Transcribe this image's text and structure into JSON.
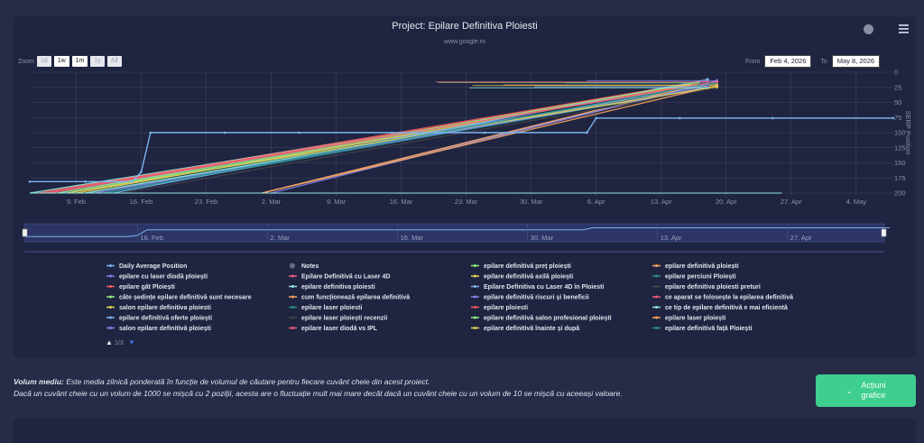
{
  "header": {
    "title": "Project: Epilare Definitiva Ploiesti",
    "subtitle": "www.google.ro"
  },
  "toolbar": {
    "zoom_label": "Zoom",
    "zoom_buttons": [
      "1d",
      "1w",
      "1m",
      "1y",
      "All"
    ],
    "from_label": "From",
    "from_value": "Feb 4, 2026",
    "to_label": "To",
    "to_value": "May 8, 2026"
  },
  "colors": {
    "background": "#262b48",
    "panel": "#1f2440",
    "accent_button": "#3ecf8e",
    "daily_average": "#7cb5ec"
  },
  "chart_data": {
    "type": "line",
    "title": "Project: Epilare Definitiva Ploiesti",
    "subtitle": "www.google.ro",
    "ylabel": "SERP Position",
    "y_reversed": true,
    "ylim": [
      0,
      200
    ],
    "y_ticks": [
      0,
      25,
      50,
      75,
      100,
      125,
      150,
      175,
      200
    ],
    "x_ticks": [
      "9. Feb",
      "16. Feb",
      "23. Feb",
      "2. Mar",
      "9. Mar",
      "16. Mar",
      "23. Mar",
      "30. Mar",
      "6. Apr",
      "13. Apr",
      "20. Apr",
      "27. Apr",
      "4. May"
    ],
    "navigator_ticks": [
      "16. Feb",
      "2. Mar",
      "16. Mar",
      "30. Mar",
      "13. Apr",
      "27. Apr"
    ],
    "grid": true,
    "legend_position": "bottom",
    "legend_pages": "1/3",
    "daily_average": {
      "name": "Daily Average Position",
      "points": [
        [
          "2026-02-04",
          181
        ],
        [
          "2026-02-10",
          181
        ],
        [
          "2026-02-15",
          181
        ],
        [
          "2026-02-16",
          165
        ],
        [
          "2026-02-17",
          100
        ],
        [
          "2026-02-25",
          100
        ],
        [
          "2026-03-05",
          100
        ],
        [
          "2026-03-15",
          100
        ],
        [
          "2026-03-25",
          100
        ],
        [
          "2026-04-05",
          100
        ],
        [
          "2026-04-06",
          76
        ],
        [
          "2026-04-15",
          76
        ],
        [
          "2026-04-25",
          76
        ],
        [
          "2026-05-08",
          76
        ]
      ]
    },
    "series": [
      {
        "name": "Notes",
        "color": "#666b80"
      },
      {
        "name": "epilare definitivă preț ploiești",
        "color": "#90ed7d",
        "start": [
          "2026-02-06",
          200
        ],
        "end": [
          "2026-04-17",
          18
        ]
      },
      {
        "name": "epilare definitivă ploiești",
        "color": "#f7a35c",
        "start": [
          "2026-03-01",
          200
        ],
        "end": [
          "2026-04-18",
          20
        ]
      },
      {
        "name": "epilare cu laser diodă ploiești",
        "color": "#8085e9",
        "start": [
          "2026-03-01",
          200
        ],
        "end": [
          "2026-04-19",
          14
        ]
      },
      {
        "name": "Epilare Definitivă cu Laser 4D",
        "color": "#f15c80",
        "start": [
          "2026-02-05",
          200
        ],
        "end": [
          "2026-04-19",
          17
        ]
      },
      {
        "name": "epilare definitivă axilă ploiești",
        "color": "#e4d354",
        "start": [
          "2026-02-10",
          200
        ],
        "end": [
          "2026-04-19",
          20
        ]
      },
      {
        "name": "epilare perciuni Ploiești",
        "color": "#2b908f",
        "start": [
          "2026-02-10",
          200
        ],
        "end": [
          "2026-04-19",
          18
        ]
      },
      {
        "name": "epilare gât Ploiești",
        "color": "#f45b5b",
        "start": [
          "2026-02-05",
          200
        ],
        "end": [
          "2026-04-17",
          16
        ]
      },
      {
        "name": "epilare definitiva ploiesti",
        "color": "#91e8e1",
        "start": [
          "2026-02-04",
          200
        ],
        "end": [
          "2026-04-17",
          22
        ]
      },
      {
        "name": "Epilare Definitiva cu Laser 4D în Ploiesti",
        "color": "#7cb5ec",
        "start": [
          "2026-02-07",
          200
        ],
        "end": [
          "2026-04-18",
          24
        ]
      },
      {
        "name": "epilare definitiva ploiesti preturi",
        "color": "#434348",
        "start": [
          "2026-02-11",
          200
        ],
        "end": [
          "2026-04-18",
          24
        ]
      },
      {
        "name": "câte ședințe epilare definitivă sunt necesare",
        "color": "#90ed7d",
        "start": [
          "2026-02-08",
          200
        ],
        "end": [
          "2026-04-16",
          21
        ]
      },
      {
        "name": "cum funcționează epilarea definitivă",
        "color": "#f7a35c",
        "start": [
          "2026-03-01",
          200
        ],
        "end": [
          "2026-04-17",
          21
        ]
      },
      {
        "name": "epilare definitivă riscuri și beneficii",
        "color": "#8085e9",
        "start": [
          "2026-03-02",
          200
        ],
        "end": [
          "2026-04-18",
          19
        ]
      },
      {
        "name": "ce aparat se folosește la epilarea definitivă",
        "color": "#f15c80",
        "start": [
          "2026-02-06",
          200
        ],
        "end": [
          "2026-04-18",
          15
        ]
      },
      {
        "name": "salon epilare definitiva ploiesti",
        "color": "#e4d354",
        "start": [
          "2026-02-09",
          200
        ],
        "end": [
          "2026-04-16",
          22
        ]
      },
      {
        "name": "epilare laser ploiesti",
        "color": "#2b908f",
        "start": [
          "2026-02-12",
          200
        ],
        "end": [
          "2026-04-19",
          23
        ]
      },
      {
        "name": "epilare ploiesti",
        "color": "#f45b5b",
        "start": [
          "2026-02-05",
          200
        ],
        "end": [
          "2026-04-17",
          20
        ]
      },
      {
        "name": "ce tip de epilare definitivă e mai eficientă",
        "color": "#91e8e1",
        "start": [
          "2026-02-10",
          200
        ],
        "end": [
          "2026-04-18",
          26
        ]
      },
      {
        "name": "epilare definitivă oferte ploiești",
        "color": "#7cb5ec",
        "start": [
          "2026-02-13",
          200
        ],
        "end": [
          "2026-04-18",
          12
        ]
      },
      {
        "name": "epilare laser ploiești recenzii",
        "color": "#434348",
        "start": [
          "2026-02-14",
          200
        ],
        "end": [
          "2026-04-19",
          26
        ]
      },
      {
        "name": "epilare definitivă salon profesional ploiești",
        "color": "#90ed7d",
        "start": [
          "2026-02-07",
          200
        ],
        "end": [
          "2026-04-17",
          17
        ]
      },
      {
        "name": "epilare laser ploiești",
        "color": "#f7a35c",
        "start": [
          "2026-03-01",
          200
        ],
        "end": [
          "2026-04-19",
          22
        ]
      },
      {
        "name": "salon epilare definitivă ploiești",
        "color": "#8085e9",
        "start": [
          "2026-02-11",
          200
        ],
        "end": [
          "2026-04-18",
          25
        ]
      },
      {
        "name": "epilare laser diodă vs IPL",
        "color": "#f15c80",
        "start": [
          "2026-02-06",
          200
        ],
        "end": [
          "2026-04-19",
          16
        ]
      },
      {
        "name": "epilare definitivă înainte și după",
        "color": "#e4d354",
        "start": [
          "2026-02-08",
          200
        ],
        "end": [
          "2026-04-19",
          24
        ]
      },
      {
        "name": "epilare definitivă față Ploiești",
        "color": "#2b908f",
        "start": [
          "2026-02-12",
          200
        ],
        "end": [
          "2026-04-17",
          22
        ]
      }
    ]
  },
  "legend": {
    "columns": [
      [
        {
          "label": "Daily Average Position",
          "color": "#7cb5ec",
          "bold": true
        },
        {
          "label": "epilare cu laser diodă ploiești",
          "color": "#8085e9"
        },
        {
          "label": "epilare gât Ploiești",
          "color": "#f45b5b"
        },
        {
          "label": "câte ședințe epilare definitivă sunt necesare",
          "color": "#90ed7d"
        },
        {
          "label": "salon epilare definitiva ploiesti",
          "color": "#e4d354"
        },
        {
          "label": "epilare definitivă oferte ploiești",
          "color": "#7cb5ec"
        },
        {
          "label": "salon epilare definitivă ploiești",
          "color": "#8085e9"
        }
      ],
      [
        {
          "label": "Notes",
          "color": "#666b80",
          "dot": true
        },
        {
          "label": "Epilare Definitivă cu Laser 4D",
          "color": "#f15c80"
        },
        {
          "label": "epilare definitiva ploiesti",
          "color": "#91e8e1"
        },
        {
          "label": "cum funcționează epilarea definitivă",
          "color": "#f7a35c"
        },
        {
          "label": "epilare laser ploiesti",
          "color": "#2b908f"
        },
        {
          "label": "epilare laser ploiești recenzii",
          "color": "#434348"
        },
        {
          "label": "epilare laser diodă vs IPL",
          "color": "#f15c80"
        }
      ],
      [
        {
          "label": "epilare definitivă preț ploiești",
          "color": "#90ed7d"
        },
        {
          "label": "epilare definitivă axilă ploiești",
          "color": "#e4d354"
        },
        {
          "label": "Epilare Definitiva cu Laser 4D în Ploiesti",
          "color": "#7cb5ec"
        },
        {
          "label": "epilare definitivă riscuri și beneficii",
          "color": "#8085e9"
        },
        {
          "label": "epilare ploiesti",
          "color": "#f45b5b"
        },
        {
          "label": "epilare definitivă salon profesional ploiești",
          "color": "#90ed7d"
        },
        {
          "label": "epilare definitivă înainte și după",
          "color": "#e4d354"
        }
      ],
      [
        {
          "label": "epilare definitivă ploiești",
          "color": "#f7a35c"
        },
        {
          "label": "epilare perciuni Ploiești",
          "color": "#2b908f"
        },
        {
          "label": "epilare definitiva ploiesti preturi",
          "color": "#434348"
        },
        {
          "label": "ce aparat se folosește la epilarea definitivă",
          "color": "#f15c80"
        },
        {
          "label": "ce tip de epilare definitivă e mai eficientă",
          "color": "#91e8e1"
        },
        {
          "label": "epilare laser ploiești",
          "color": "#f7a35c"
        },
        {
          "label": "epilare definitivă față Ploiești",
          "color": "#2b908f"
        }
      ]
    ],
    "pager": "1/3"
  },
  "footnote": {
    "term": "Volum mediu:",
    "line1": " Este media zilnică ponderată în funcție de volumul de căutare pentru fiecare cuvânt cheie din acest proiect.",
    "line2": "Dacă un cuvânt cheie cu un volum de 1000 se mișcă cu 2 poziții, acesta are o fluctuație mult mai mare decât dacă un cuvânt cheie cu un volum de 10 se mișcă cu aceeași valoare."
  },
  "actions": {
    "label_line1": "Acțiuni",
    "label_line2": "grafice",
    "chevron": "⌄"
  }
}
